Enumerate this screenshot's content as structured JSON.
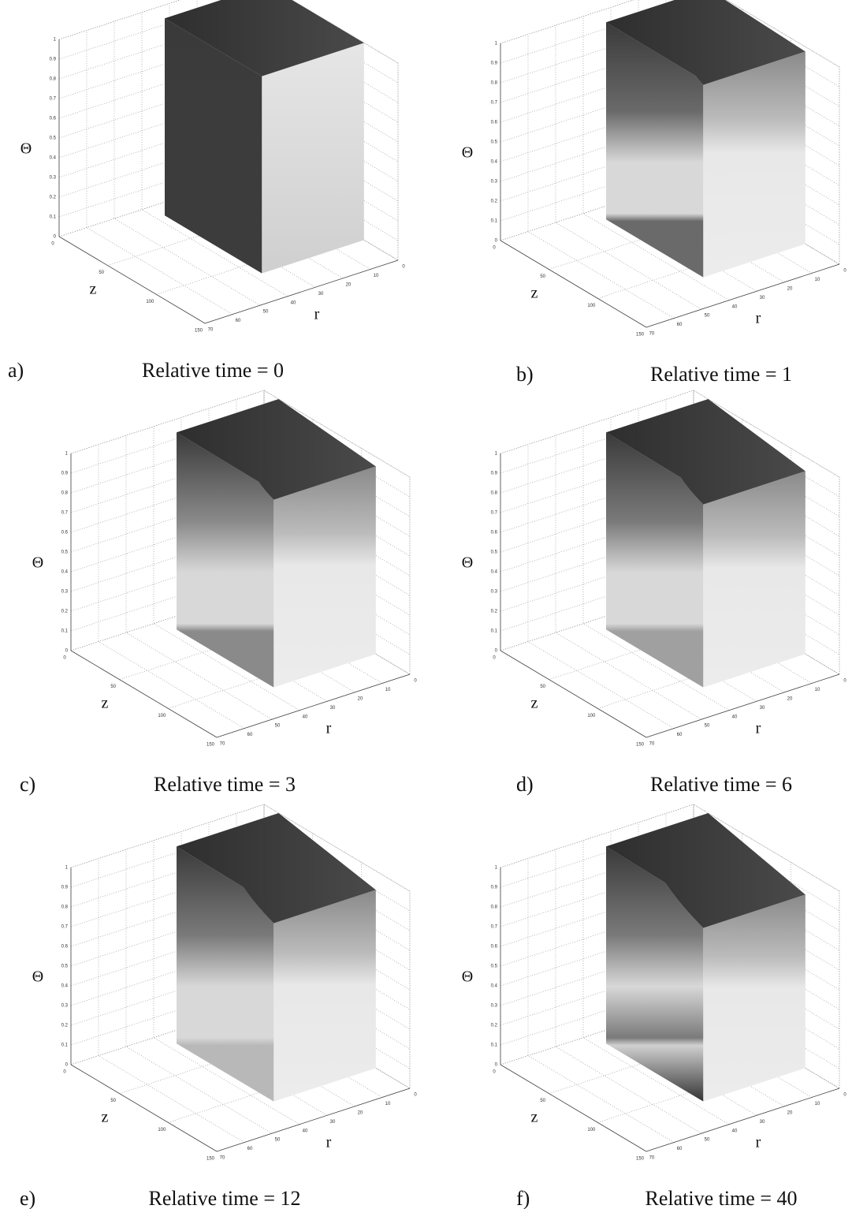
{
  "chart_data": [
    {
      "type": "surface3d",
      "panel": "a)",
      "title": "Relative time = 0",
      "zlabel": "Θ",
      "xlabel": "z",
      "ylabel": "r",
      "xlim": [
        0,
        150
      ],
      "xticks": [
        0,
        50,
        100,
        150
      ],
      "ylim": [
        0,
        70
      ],
      "yticks": [
        0,
        10,
        20,
        30,
        40,
        50,
        60,
        70
      ],
      "zlim": [
        0,
        1
      ],
      "zticks": [
        0,
        0.1,
        0.2,
        0.3,
        0.4,
        0.5,
        0.6,
        0.7,
        0.8,
        0.9,
        1
      ],
      "grid": true
    },
    {
      "type": "surface3d",
      "panel": "b)",
      "title": "Relative time = 1",
      "zlabel": "Θ",
      "xlabel": "z",
      "ylabel": "r",
      "xlim": [
        0,
        150
      ],
      "xticks": [
        0,
        50,
        100,
        150
      ],
      "ylim": [
        0,
        70
      ],
      "yticks": [
        0,
        10,
        20,
        30,
        40,
        50,
        60,
        70
      ],
      "zlim": [
        0,
        1
      ],
      "zticks": [
        0,
        0.1,
        0.2,
        0.3,
        0.4,
        0.5,
        0.6,
        0.7,
        0.8,
        0.9,
        1
      ],
      "grid": true
    },
    {
      "type": "surface3d",
      "panel": "c)",
      "title": "Relative time = 3",
      "zlabel": "Θ",
      "xlabel": "z",
      "ylabel": "r",
      "xlim": [
        0,
        150
      ],
      "xticks": [
        0,
        50,
        100,
        150
      ],
      "ylim": [
        0,
        70
      ],
      "yticks": [
        0,
        10,
        20,
        30,
        40,
        50,
        60,
        70
      ],
      "zlim": [
        0,
        1
      ],
      "zticks": [
        0,
        0.1,
        0.2,
        0.3,
        0.4,
        0.5,
        0.6,
        0.7,
        0.8,
        0.9,
        1
      ],
      "grid": true
    },
    {
      "type": "surface3d",
      "panel": "d)",
      "title": "Relative time = 6",
      "zlabel": "Θ",
      "xlabel": "z",
      "ylabel": "r",
      "xlim": [
        0,
        150
      ],
      "xticks": [
        0,
        50,
        100,
        150
      ],
      "ylim": [
        0,
        70
      ],
      "yticks": [
        0,
        10,
        20,
        30,
        40,
        50,
        60,
        70
      ],
      "zlim": [
        0,
        1
      ],
      "zticks": [
        0,
        0.1,
        0.2,
        0.3,
        0.4,
        0.5,
        0.6,
        0.7,
        0.8,
        0.9,
        1
      ],
      "grid": true
    },
    {
      "type": "surface3d",
      "panel": "e)",
      "title": "Relative time = 12",
      "zlabel": "Θ",
      "xlabel": "z",
      "ylabel": "r",
      "xlim": [
        0,
        150
      ],
      "xticks": [
        0,
        50,
        100,
        150
      ],
      "ylim": [
        0,
        70
      ],
      "yticks": [
        0,
        10,
        20,
        30,
        40,
        50,
        60,
        70
      ],
      "zlim": [
        0,
        1
      ],
      "zticks": [
        0,
        0.1,
        0.2,
        0.3,
        0.4,
        0.5,
        0.6,
        0.7,
        0.8,
        0.9,
        1
      ],
      "grid": true
    },
    {
      "type": "surface3d",
      "panel": "f)",
      "title": "Relative time = 40",
      "zlabel": "Θ",
      "xlabel": "z",
      "ylabel": "r",
      "xlim": [
        0,
        150
      ],
      "xticks": [
        0,
        50,
        100,
        150
      ],
      "ylim": [
        0,
        70
      ],
      "yticks": [
        0,
        10,
        20,
        30,
        40,
        50,
        60,
        70
      ],
      "zlim": [
        0,
        1
      ],
      "zticks": [
        0,
        0.1,
        0.2,
        0.3,
        0.4,
        0.5,
        0.6,
        0.7,
        0.8,
        0.9,
        1
      ],
      "grid": true
    }
  ]
}
